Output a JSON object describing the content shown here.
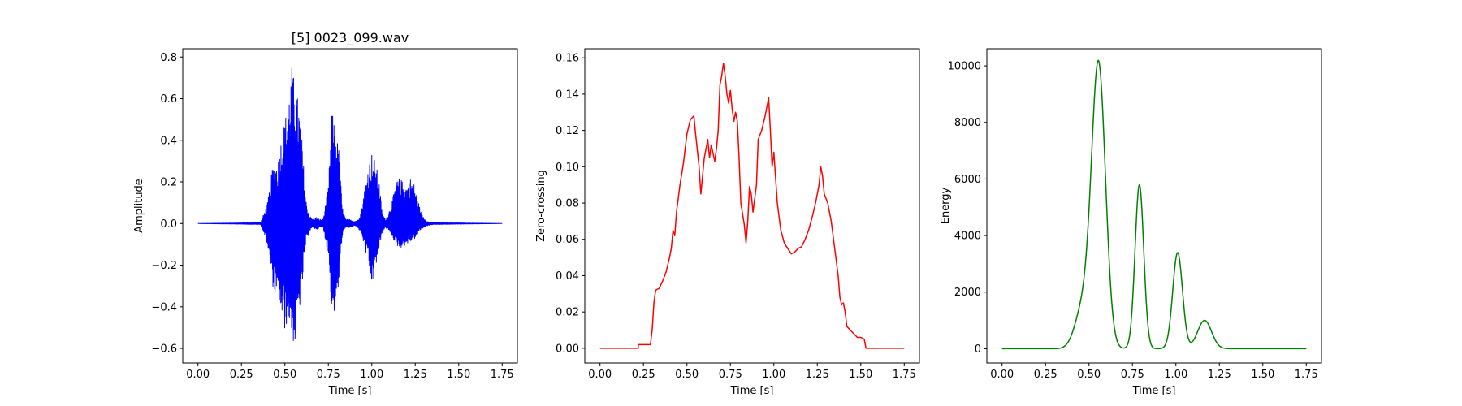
{
  "chart_data": [
    {
      "type": "line",
      "title": "[5] 0023_099.wav",
      "xlabel": "Time [s]",
      "ylabel": "Amplitude",
      "xlim": [
        -0.0875,
        1.8375
      ],
      "ylim": [
        -0.67,
        0.84
      ],
      "xticks": [
        0.0,
        0.25,
        0.5,
        0.75,
        1.0,
        1.25,
        1.5,
        1.75
      ],
      "xtick_labels": [
        "0.00",
        "0.25",
        "0.50",
        "0.75",
        "1.00",
        "1.25",
        "1.50",
        "1.75"
      ],
      "yticks": [
        -0.6,
        -0.4,
        -0.2,
        0.0,
        0.2,
        0.4,
        0.6,
        0.8
      ],
      "ytick_labels": [
        "−0.6",
        "−0.4",
        "−0.2",
        "0.0",
        "0.2",
        "0.4",
        "0.6",
        "0.8"
      ],
      "grid": false,
      "color": "#0000ff",
      "series": [
        {
          "envelope_upper": [
            [
              0.0,
              0.0
            ],
            [
              0.25,
              0.003
            ],
            [
              0.36,
              0.005
            ],
            [
              0.38,
              0.05
            ],
            [
              0.4,
              0.1
            ],
            [
              0.43,
              0.28
            ],
            [
              0.46,
              0.3
            ],
            [
              0.48,
              0.42
            ],
            [
              0.5,
              0.5
            ],
            [
              0.52,
              0.6
            ],
            [
              0.54,
              0.76
            ],
            [
              0.56,
              0.66
            ],
            [
              0.58,
              0.58
            ],
            [
              0.6,
              0.38
            ],
            [
              0.62,
              0.12
            ],
            [
              0.64,
              0.04
            ],
            [
              0.66,
              0.02
            ],
            [
              0.68,
              0.03
            ],
            [
              0.7,
              0.02
            ],
            [
              0.72,
              0.02
            ],
            [
              0.75,
              0.18
            ],
            [
              0.77,
              0.54
            ],
            [
              0.79,
              0.46
            ],
            [
              0.81,
              0.36
            ],
            [
              0.83,
              0.08
            ],
            [
              0.85,
              0.02
            ],
            [
              0.88,
              0.02
            ],
            [
              0.9,
              0.01
            ],
            [
              0.92,
              0.02
            ],
            [
              0.94,
              0.06
            ],
            [
              0.96,
              0.18
            ],
            [
              0.98,
              0.28
            ],
            [
              1.0,
              0.34
            ],
            [
              1.02,
              0.3
            ],
            [
              1.04,
              0.22
            ],
            [
              1.06,
              0.05
            ],
            [
              1.08,
              0.02
            ],
            [
              1.1,
              0.06
            ],
            [
              1.12,
              0.12
            ],
            [
              1.14,
              0.2
            ],
            [
              1.16,
              0.22
            ],
            [
              1.18,
              0.2
            ],
            [
              1.2,
              0.18
            ],
            [
              1.22,
              0.22
            ],
            [
              1.24,
              0.2
            ],
            [
              1.26,
              0.14
            ],
            [
              1.28,
              0.06
            ],
            [
              1.3,
              0.03
            ],
            [
              1.32,
              0.01
            ],
            [
              1.35,
              0.005
            ],
            [
              1.5,
              0.003
            ],
            [
              1.75,
              0.0
            ]
          ],
          "envelope_lower": [
            [
              0.0,
              0.0
            ],
            [
              0.25,
              -0.003
            ],
            [
              0.36,
              -0.005
            ],
            [
              0.38,
              -0.05
            ],
            [
              0.4,
              -0.1
            ],
            [
              0.43,
              -0.3
            ],
            [
              0.46,
              -0.4
            ],
            [
              0.48,
              -0.45
            ],
            [
              0.5,
              -0.52
            ],
            [
              0.52,
              -0.45
            ],
            [
              0.54,
              -0.55
            ],
            [
              0.56,
              -0.6
            ],
            [
              0.58,
              -0.45
            ],
            [
              0.6,
              -0.3
            ],
            [
              0.62,
              -0.1
            ],
            [
              0.64,
              -0.04
            ],
            [
              0.66,
              -0.02
            ],
            [
              0.68,
              -0.03
            ],
            [
              0.7,
              -0.02
            ],
            [
              0.72,
              -0.02
            ],
            [
              0.75,
              -0.15
            ],
            [
              0.77,
              -0.42
            ],
            [
              0.79,
              -0.44
            ],
            [
              0.81,
              -0.3
            ],
            [
              0.83,
              -0.06
            ],
            [
              0.85,
              -0.02
            ],
            [
              0.88,
              -0.02
            ],
            [
              0.9,
              -0.01
            ],
            [
              0.92,
              -0.02
            ],
            [
              0.94,
              -0.05
            ],
            [
              0.96,
              -0.12
            ],
            [
              0.98,
              -0.2
            ],
            [
              1.0,
              -0.3
            ],
            [
              1.02,
              -0.22
            ],
            [
              1.04,
              -0.14
            ],
            [
              1.06,
              -0.04
            ],
            [
              1.08,
              -0.02
            ],
            [
              1.1,
              -0.04
            ],
            [
              1.12,
              -0.07
            ],
            [
              1.14,
              -0.1
            ],
            [
              1.16,
              -0.12
            ],
            [
              1.18,
              -0.11
            ],
            [
              1.2,
              -0.1
            ],
            [
              1.22,
              -0.09
            ],
            [
              1.24,
              -0.08
            ],
            [
              1.26,
              -0.06
            ],
            [
              1.28,
              -0.03
            ],
            [
              1.3,
              -0.02
            ],
            [
              1.32,
              -0.01
            ],
            [
              1.35,
              -0.005
            ],
            [
              1.5,
              -0.003
            ],
            [
              1.75,
              0.0
            ]
          ]
        }
      ]
    },
    {
      "type": "line",
      "title": "",
      "xlabel": "Time [s]",
      "ylabel": "Zero-crossing",
      "xlim": [
        -0.0875,
        1.8375
      ],
      "ylim": [
        -0.0081,
        0.165
      ],
      "xticks": [
        0.0,
        0.25,
        0.5,
        0.75,
        1.0,
        1.25,
        1.5,
        1.75
      ],
      "xtick_labels": [
        "0.00",
        "0.25",
        "0.50",
        "0.75",
        "1.00",
        "1.25",
        "1.50",
        "1.75"
      ],
      "yticks": [
        0.0,
        0.02,
        0.04,
        0.06,
        0.08,
        0.1,
        0.12,
        0.14,
        0.16
      ],
      "ytick_labels": [
        "0.00",
        "0.02",
        "0.04",
        "0.06",
        "0.08",
        "0.10",
        "0.12",
        "0.14",
        "0.16"
      ],
      "grid": false,
      "color": "#ff0000",
      "series": [
        {
          "points": [
            [
              0.0,
              0.0
            ],
            [
              0.22,
              0.0
            ],
            [
              0.22,
              0.002
            ],
            [
              0.29,
              0.002
            ],
            [
              0.3,
              0.01
            ],
            [
              0.31,
              0.025
            ],
            [
              0.32,
              0.032
            ],
            [
              0.34,
              0.033
            ],
            [
              0.36,
              0.037
            ],
            [
              0.38,
              0.042
            ],
            [
              0.4,
              0.05
            ],
            [
              0.41,
              0.055
            ],
            [
              0.42,
              0.065
            ],
            [
              0.43,
              0.062
            ],
            [
              0.44,
              0.075
            ],
            [
              0.46,
              0.09
            ],
            [
              0.48,
              0.102
            ],
            [
              0.5,
              0.118
            ],
            [
              0.52,
              0.126
            ],
            [
              0.54,
              0.128
            ],
            [
              0.55,
              0.118
            ],
            [
              0.57,
              0.1
            ],
            [
              0.58,
              0.085
            ],
            [
              0.6,
              0.105
            ],
            [
              0.62,
              0.115
            ],
            [
              0.63,
              0.105
            ],
            [
              0.64,
              0.112
            ],
            [
              0.66,
              0.103
            ],
            [
              0.67,
              0.11
            ],
            [
              0.68,
              0.12
            ],
            [
              0.69,
              0.145
            ],
            [
              0.7,
              0.15
            ],
            [
              0.71,
              0.157
            ],
            [
              0.72,
              0.15
            ],
            [
              0.73,
              0.14
            ],
            [
              0.74,
              0.135
            ],
            [
              0.75,
              0.142
            ],
            [
              0.76,
              0.132
            ],
            [
              0.77,
              0.125
            ],
            [
              0.78,
              0.13
            ],
            [
              0.79,
              0.125
            ],
            [
              0.8,
              0.105
            ],
            [
              0.81,
              0.08
            ],
            [
              0.83,
              0.068
            ],
            [
              0.84,
              0.058
            ],
            [
              0.85,
              0.07
            ],
            [
              0.86,
              0.089
            ],
            [
              0.87,
              0.085
            ],
            [
              0.88,
              0.075
            ],
            [
              0.9,
              0.09
            ],
            [
              0.91,
              0.115
            ],
            [
              0.93,
              0.12
            ],
            [
              0.95,
              0.128
            ],
            [
              0.97,
              0.138
            ],
            [
              0.98,
              0.12
            ],
            [
              0.99,
              0.1
            ],
            [
              1.0,
              0.108
            ],
            [
              1.02,
              0.08
            ],
            [
              1.04,
              0.065
            ],
            [
              1.06,
              0.058
            ],
            [
              1.08,
              0.055
            ],
            [
              1.1,
              0.052
            ],
            [
              1.12,
              0.053
            ],
            [
              1.14,
              0.055
            ],
            [
              1.16,
              0.056
            ],
            [
              1.18,
              0.06
            ],
            [
              1.2,
              0.065
            ],
            [
              1.22,
              0.072
            ],
            [
              1.24,
              0.08
            ],
            [
              1.26,
              0.09
            ],
            [
              1.27,
              0.1
            ],
            [
              1.28,
              0.095
            ],
            [
              1.29,
              0.085
            ],
            [
              1.31,
              0.08
            ],
            [
              1.33,
              0.07
            ],
            [
              1.35,
              0.055
            ],
            [
              1.37,
              0.04
            ],
            [
              1.38,
              0.028
            ],
            [
              1.39,
              0.024
            ],
            [
              1.4,
              0.025
            ],
            [
              1.41,
              0.02
            ],
            [
              1.42,
              0.012
            ],
            [
              1.44,
              0.01
            ],
            [
              1.46,
              0.008
            ],
            [
              1.48,
              0.006
            ],
            [
              1.5,
              0.006
            ],
            [
              1.52,
              0.005
            ],
            [
              1.53,
              0.0
            ],
            [
              1.75,
              0.0
            ]
          ]
        }
      ]
    },
    {
      "type": "line",
      "title": "",
      "xlabel": "Time [s]",
      "ylabel": "Energy",
      "xlim": [
        -0.0875,
        1.8375
      ],
      "ylim": [
        -505,
        10605
      ],
      "xticks": [
        0.0,
        0.25,
        0.5,
        0.75,
        1.0,
        1.25,
        1.5,
        1.75
      ],
      "xtick_labels": [
        "0.00",
        "0.25",
        "0.50",
        "0.75",
        "1.00",
        "1.25",
        "1.50",
        "1.75"
      ],
      "yticks": [
        0,
        2000,
        4000,
        6000,
        8000,
        10000
      ],
      "ytick_labels": [
        "0",
        "2000",
        "4000",
        "6000",
        "8000",
        "10000"
      ],
      "grid": false,
      "color": "#008000",
      "series": [
        {
          "peaks": [
            {
              "t": 0.465,
              "amp": 1400,
              "width": 0.045
            },
            {
              "t": 0.555,
              "amp": 10000,
              "width": 0.04
            },
            {
              "t": 0.79,
              "amp": 5800,
              "width": 0.025
            },
            {
              "t": 1.01,
              "amp": 3400,
              "width": 0.028
            },
            {
              "t": 1.165,
              "amp": 1000,
              "width": 0.04
            }
          ]
        }
      ]
    }
  ]
}
